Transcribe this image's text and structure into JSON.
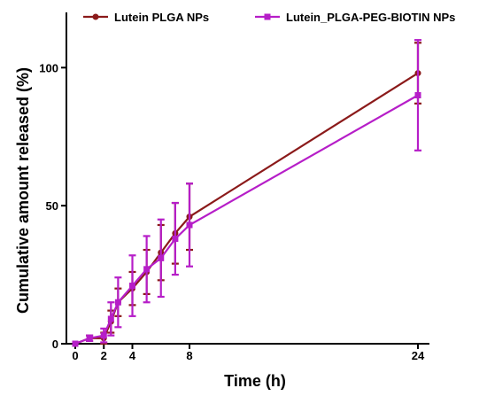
{
  "chart_data": {
    "type": "line",
    "xlabel": "Time (h)",
    "ylabel": "Cumulative amount released (%)",
    "x_ticks": [
      0,
      2,
      4,
      8,
      24
    ],
    "y_ticks": [
      0,
      50,
      100
    ],
    "xlim": [
      0,
      24
    ],
    "ylim": [
      0,
      120
    ],
    "legend_position": "top",
    "series": [
      {
        "name": "Lutein PLGA NPs",
        "color": "#8b1a1a",
        "marker": "circle",
        "x": [
          0,
          1,
          2,
          2.5,
          3,
          4,
          5,
          6,
          7,
          8,
          24
        ],
        "y": [
          0,
          2,
          2,
          8,
          15,
          20,
          26,
          33,
          40,
          46,
          98
        ],
        "err": [
          0,
          1,
          2,
          4,
          5,
          6,
          8,
          10,
          11,
          12,
          11
        ]
      },
      {
        "name": "Lutein_PLGA-PEG-BIOTIN NPs",
        "color": "#b61ec8",
        "marker": "square",
        "x": [
          0,
          1,
          2,
          2.5,
          3,
          4,
          5,
          6,
          7,
          8,
          24
        ],
        "y": [
          0,
          2,
          3,
          9,
          15,
          21,
          27,
          31,
          38,
          43,
          90
        ],
        "err": [
          0,
          1,
          2.5,
          6,
          9,
          11,
          12,
          14,
          13,
          15,
          20
        ]
      }
    ]
  }
}
